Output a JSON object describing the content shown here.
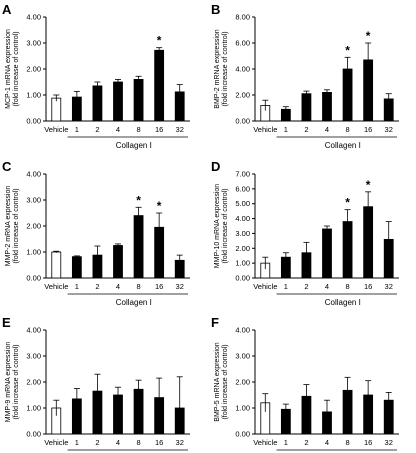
{
  "chart_data": [
    {
      "type": "bar",
      "panel_letter": "A",
      "ylabel_lines": [
        "MCP-1 mRNA expression",
        "(fold increase of control)"
      ],
      "categories": [
        "Vehicle",
        "1",
        "2",
        "4",
        "8",
        "16",
        "32"
      ],
      "group_label": "Collagen I",
      "ylim": [
        0,
        4
      ],
      "yticks": [
        "0.00",
        "1.00",
        "2.00",
        "3.00",
        "4.00"
      ],
      "series": [
        {
          "values": [
            0.88,
            0.92,
            1.35,
            1.5,
            1.6,
            2.72,
            1.12
          ],
          "errors": [
            0.12,
            0.22,
            0.15,
            0.1,
            0.12,
            0.1,
            0.28
          ]
        }
      ],
      "bar_colors": [
        "#ffffff",
        "#000000",
        "#000000",
        "#000000",
        "#000000",
        "#000000",
        "#000000"
      ],
      "significance": [
        "",
        "",
        "",
        "",
        "",
        "*",
        ""
      ]
    },
    {
      "type": "bar",
      "panel_letter": "B",
      "ylabel_lines": [
        "BMP-2 mRNA expression",
        "(fold increase of control)"
      ],
      "categories": [
        "Vehicle",
        "1",
        "2",
        "4",
        "8",
        "16",
        "32"
      ],
      "group_label": "Collagen I",
      "ylim": [
        0,
        8
      ],
      "yticks": [
        "0.00",
        "2.00",
        "4.00",
        "6.00",
        "8.00"
      ],
      "series": [
        {
          "values": [
            1.2,
            0.9,
            2.1,
            2.2,
            4.0,
            4.7,
            1.7
          ],
          "errors": [
            0.4,
            0.2,
            0.2,
            0.2,
            0.9,
            1.3,
            0.4
          ]
        }
      ],
      "bar_colors": [
        "#ffffff",
        "#000000",
        "#000000",
        "#000000",
        "#000000",
        "#000000",
        "#000000"
      ],
      "significance": [
        "",
        "",
        "",
        "",
        "*",
        "*",
        ""
      ]
    },
    {
      "type": "bar",
      "panel_letter": "C",
      "ylabel_lines": [
        "MMP-2 mRNA expression",
        "(fold increase of control)"
      ],
      "categories": [
        "Vehicle",
        "1",
        "2",
        "4",
        "8",
        "16",
        "32"
      ],
      "group_label": "Collagen I",
      "ylim": [
        0,
        4
      ],
      "yticks": [
        "0.00",
        "1.00",
        "2.00",
        "3.00",
        "4.00"
      ],
      "series": [
        {
          "values": [
            1.0,
            0.82,
            0.88,
            1.25,
            2.4,
            1.95,
            0.68
          ],
          "errors": [
            0.03,
            0.03,
            0.35,
            0.06,
            0.32,
            0.55,
            0.2
          ]
        }
      ],
      "bar_colors": [
        "#ffffff",
        "#000000",
        "#000000",
        "#000000",
        "#000000",
        "#000000",
        "#000000"
      ],
      "significance": [
        "",
        "",
        "",
        "",
        "*",
        "*",
        ""
      ]
    },
    {
      "type": "bar",
      "panel_letter": "D",
      "ylabel_lines": [
        "MMP-10 mRNA expression",
        "(fold increase of control)"
      ],
      "categories": [
        "Vehicle",
        "1",
        "2",
        "4",
        "8",
        "16",
        "32"
      ],
      "group_label": "Collagen I",
      "ylim": [
        0,
        7
      ],
      "yticks": [
        "0.00",
        "1.00",
        "2.00",
        "3.00",
        "4.00",
        "5.00",
        "6.00",
        "7.00"
      ],
      "series": [
        {
          "values": [
            1.0,
            1.4,
            1.7,
            3.3,
            3.8,
            4.8,
            2.6
          ],
          "errors": [
            0.4,
            0.3,
            0.7,
            0.2,
            0.8,
            1.0,
            1.2
          ]
        }
      ],
      "bar_colors": [
        "#ffffff",
        "#000000",
        "#000000",
        "#000000",
        "#000000",
        "#000000",
        "#000000"
      ],
      "significance": [
        "",
        "",
        "",
        "",
        "*",
        "*",
        ""
      ]
    },
    {
      "type": "bar",
      "panel_letter": "E",
      "ylabel_lines": [
        "MMP-9 mRNA expression",
        "(fold increase of control)"
      ],
      "categories": [
        "Vehicle",
        "1",
        "2",
        "4",
        "8",
        "16",
        "32"
      ],
      "group_label": "Collagen I",
      "ylim": [
        0,
        4
      ],
      "yticks": [
        "0.00",
        "1.00",
        "2.00",
        "3.00",
        "4.00"
      ],
      "series": [
        {
          "values": [
            1.0,
            1.35,
            1.65,
            1.5,
            1.72,
            1.4,
            1.0
          ],
          "errors": [
            0.3,
            0.4,
            0.65,
            0.3,
            0.35,
            0.75,
            1.2
          ]
        }
      ],
      "bar_colors": [
        "#ffffff",
        "#000000",
        "#000000",
        "#000000",
        "#000000",
        "#000000",
        "#000000"
      ],
      "significance": [
        "",
        "",
        "",
        "",
        "",
        "",
        ""
      ]
    },
    {
      "type": "bar",
      "panel_letter": "F",
      "ylabel_lines": [
        "BMP-5 mRNA expression",
        "(fold increase of control)"
      ],
      "categories": [
        "Vehicle",
        "1",
        "2",
        "4",
        "8",
        "16",
        "32"
      ],
      "group_label": "Collagen I",
      "ylim": [
        0,
        4
      ],
      "yticks": [
        "0.00",
        "1.00",
        "2.00",
        "3.00",
        "4.00"
      ],
      "series": [
        {
          "values": [
            1.2,
            0.95,
            1.45,
            0.85,
            1.68,
            1.5,
            1.3
          ],
          "errors": [
            0.35,
            0.2,
            0.45,
            0.45,
            0.5,
            0.55,
            0.3
          ]
        }
      ],
      "bar_colors": [
        "#ffffff",
        "#000000",
        "#000000",
        "#000000",
        "#000000",
        "#000000",
        "#000000"
      ],
      "significance": [
        "",
        "",
        "",
        "",
        "",
        "",
        ""
      ]
    }
  ]
}
